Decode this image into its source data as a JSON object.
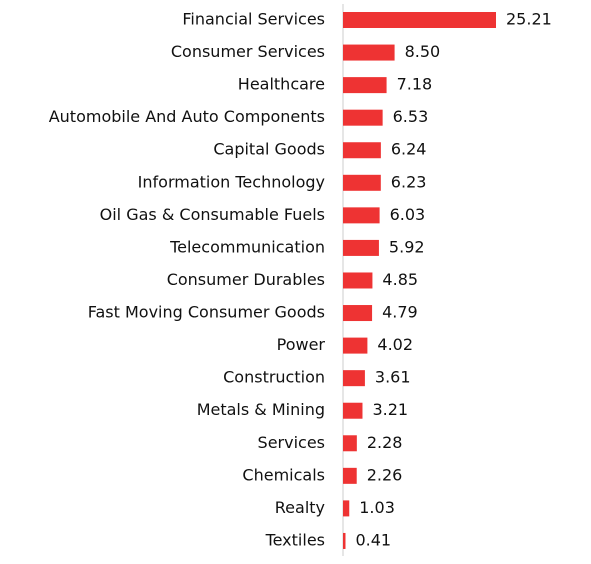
{
  "chart_data": {
    "type": "bar",
    "orientation": "horizontal",
    "color": "#ee3333",
    "categories": [
      "Financial Services",
      "Consumer Services",
      "Healthcare",
      "Automobile And Auto Components",
      "Capital Goods",
      "Information Technology",
      "Oil Gas & Consumable Fuels",
      "Telecommunication",
      "Consumer Durables",
      "Fast Moving Consumer Goods",
      "Power",
      "Construction",
      "Metals & Mining",
      "Services",
      "Chemicals",
      "Realty",
      "Textiles"
    ],
    "values": [
      25.21,
      8.5,
      7.18,
      6.53,
      6.24,
      6.23,
      6.03,
      5.92,
      4.85,
      4.79,
      4.02,
      3.61,
      3.21,
      2.28,
      2.26,
      1.03,
      0.41
    ],
    "value_labels": [
      "25.21",
      "8.50",
      "7.18",
      "6.53",
      "6.24",
      "6.23",
      "6.03",
      "5.92",
      "4.85",
      "4.79",
      "4.02",
      "3.61",
      "3.21",
      "2.28",
      "2.26",
      "1.03",
      "0.41"
    ]
  }
}
